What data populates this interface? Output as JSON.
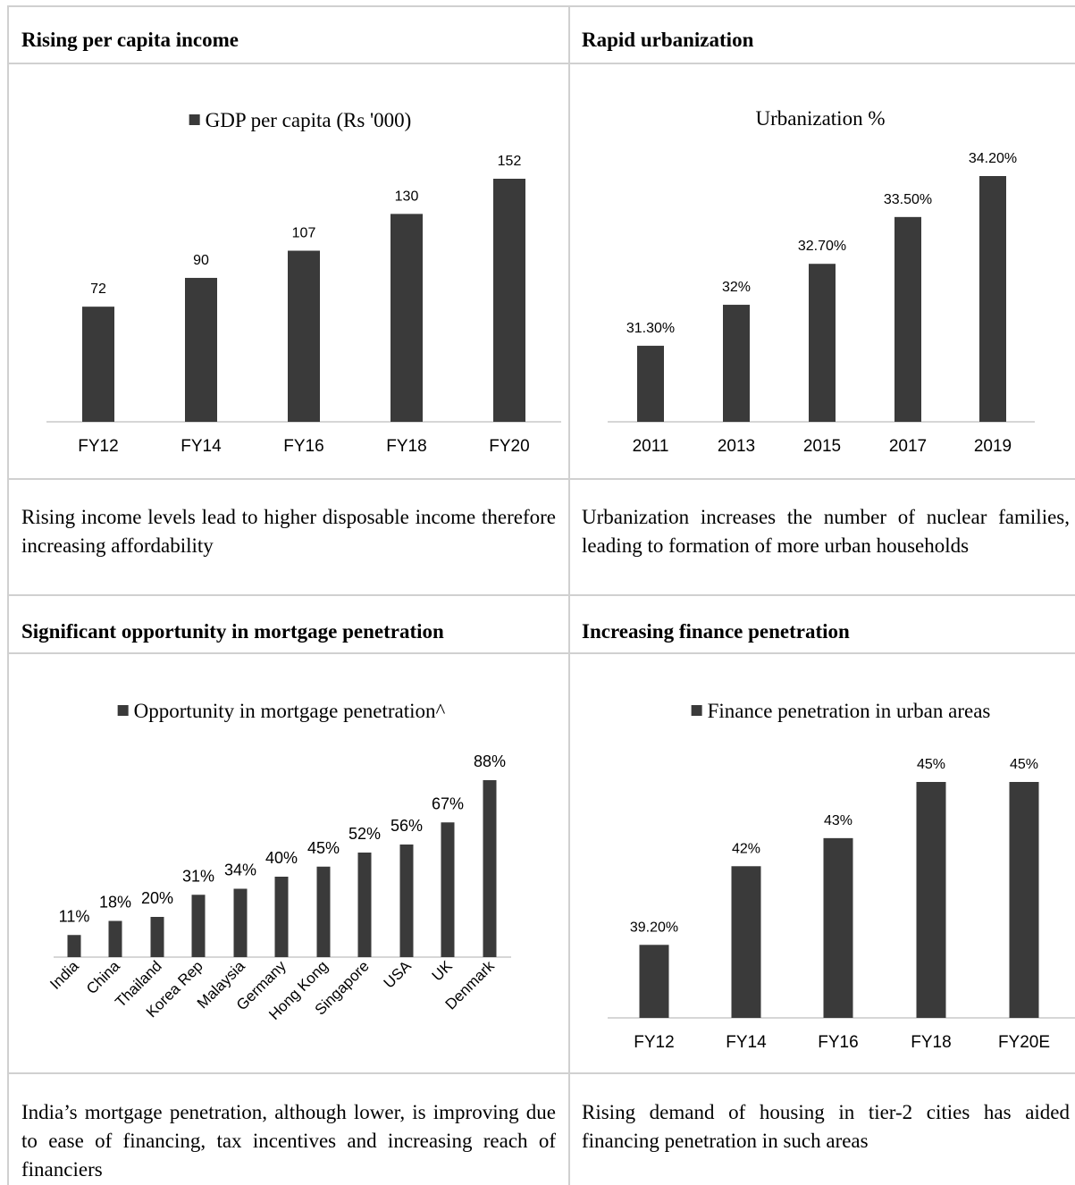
{
  "panels": {
    "p1": {
      "heading": "Rising per capita income",
      "description": "Rising income levels lead to higher disposable income therefore increasing affordability"
    },
    "p2": {
      "heading": "Rapid urbanization",
      "description": "Urbanization increases the number of nuclear families, leading to formation of more urban households"
    },
    "p3": {
      "heading": "Significant opportunity in mortgage penetration",
      "description": "India’s mortgage penetration, although lower, is improving due to ease of financing, tax incentives and increasing reach of financiers"
    },
    "p4": {
      "heading": "Increasing finance penetration",
      "description": "Rising demand of housing in tier-2 cities has aided financing penetration in such areas"
    }
  },
  "colors": {
    "bar": "#3a3a3a",
    "axis": "#c8c8c8",
    "grid": "#d0d0d0"
  },
  "chart_data": [
    {
      "type": "bar",
      "legend": "GDP per capita (Rs '000)",
      "legend_marker": true,
      "categories": [
        "FY12",
        "FY14",
        "FY16",
        "FY18",
        "FY20"
      ],
      "values": [
        72,
        90,
        107,
        130,
        152
      ],
      "labels": [
        "72",
        "90",
        "107",
        "130",
        "152"
      ],
      "ylim": [
        0,
        152
      ]
    },
    {
      "type": "bar",
      "caption": "Urbanization %",
      "categories": [
        "2011",
        "2013",
        "2015",
        "2017",
        "2019"
      ],
      "values": [
        31.3,
        32.0,
        32.7,
        33.5,
        34.2
      ],
      "labels": [
        "31.30%",
        "32%",
        "32.70%",
        "33.50%",
        "34.20%"
      ],
      "ylim": [
        30,
        34.2
      ]
    },
    {
      "type": "bar",
      "legend": "Opportunity in mortgage penetration^",
      "legend_marker": true,
      "categories": [
        "India",
        "China",
        "Thailand",
        "Korea Rep",
        "Malaysia",
        "Germany",
        "Hong Kong",
        "Singapore",
        "USA",
        "UK",
        "Denmark"
      ],
      "values": [
        11,
        18,
        20,
        31,
        34,
        40,
        45,
        52,
        56,
        67,
        88
      ],
      "labels": [
        "11%",
        "18%",
        "20%",
        "31%",
        "34%",
        "40%",
        "45%",
        "52%",
        "56%",
        "67%",
        "88%"
      ],
      "ylim": [
        0,
        88
      ]
    },
    {
      "type": "bar",
      "legend": "Finance penetration in urban areas",
      "legend_marker": true,
      "categories": [
        "FY12",
        "FY14",
        "FY16",
        "FY18",
        "FY20E"
      ],
      "values": [
        39.2,
        42,
        43,
        45,
        45
      ],
      "labels": [
        "39.20%",
        "42%",
        "43%",
        "45%",
        "45%"
      ],
      "ylim": [
        36.6,
        45
      ]
    }
  ]
}
